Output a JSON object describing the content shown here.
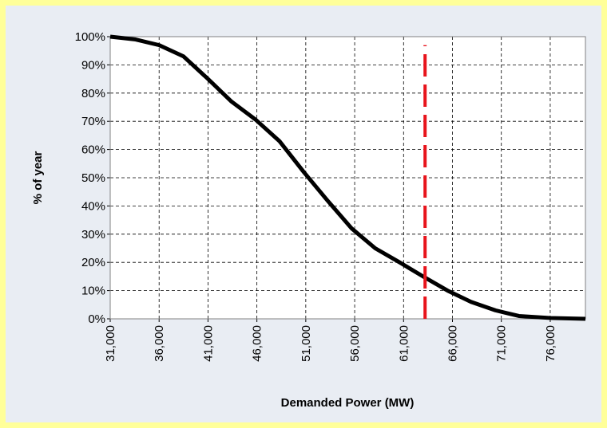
{
  "chart_data": {
    "type": "line",
    "xlabel": "Demanded Power (MW)",
    "ylabel": "% of year",
    "x": [
      31000,
      33600,
      36000,
      38500,
      41000,
      43400,
      45900,
      48300,
      50800,
      53200,
      55700,
      58100,
      60600,
      63000,
      65500,
      67900,
      70400,
      72800,
      76000,
      79600
    ],
    "series": [
      {
        "color": "#000000",
        "values": [
          100,
          99,
          97,
          93,
          85,
          77,
          70.5,
          63,
          52,
          42,
          32,
          25,
          20,
          15,
          10,
          6,
          3,
          1,
          0.3,
          0
        ]
      }
    ],
    "xlim": [
      31000,
      79600
    ],
    "xticks": [
      {
        "value": 31000,
        "label": "31,000"
      },
      {
        "value": 36000,
        "label": "36,000"
      },
      {
        "value": 41000,
        "label": "41,000"
      },
      {
        "value": 46000,
        "label": "46,000"
      },
      {
        "value": 51000,
        "label": "51,000"
      },
      {
        "value": 56000,
        "label": "56,000"
      },
      {
        "value": 61000,
        "label": "61,000"
      },
      {
        "value": 66000,
        "label": "66,000"
      },
      {
        "value": 71000,
        "label": "71,000"
      },
      {
        "value": 76000,
        "label": "76,000"
      }
    ],
    "ylim": [
      0,
      100
    ],
    "yticks": [
      {
        "value": 0,
        "label": "0%"
      },
      {
        "value": 10,
        "label": "10%"
      },
      {
        "value": 20,
        "label": "20%"
      },
      {
        "value": 30,
        "label": "30%"
      },
      {
        "value": 40,
        "label": "40%"
      },
      {
        "value": 50,
        "label": "50%"
      },
      {
        "value": 60,
        "label": "60%"
      },
      {
        "value": 70,
        "label": "70%"
      },
      {
        "value": 80,
        "label": "80%"
      },
      {
        "value": 90,
        "label": "90%"
      },
      {
        "value": 100,
        "label": "100%"
      }
    ],
    "grid": true,
    "reference_line": {
      "x": 63200,
      "y": [
        0,
        97
      ],
      "color": "#e8141c"
    }
  }
}
